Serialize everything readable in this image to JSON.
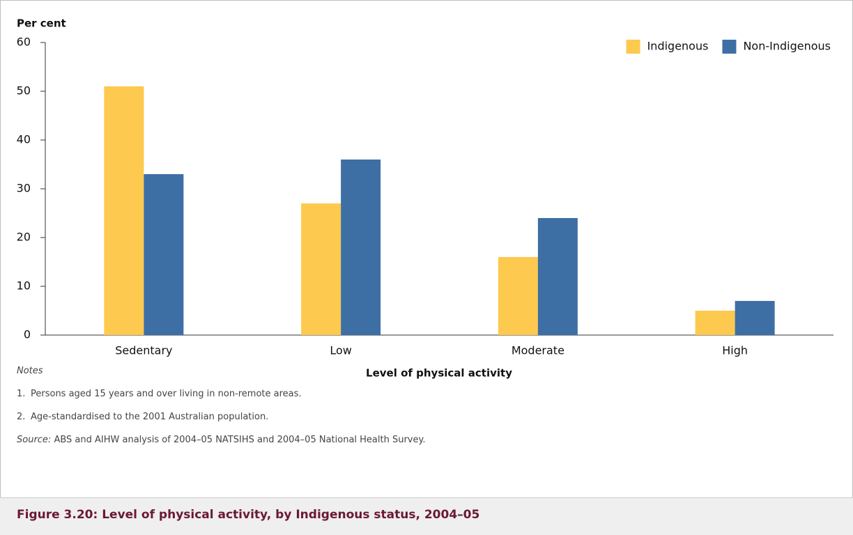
{
  "chart_data": {
    "type": "bar",
    "y_label": "Per cent",
    "x_label": "Level of physical activity",
    "categories": [
      "Sedentary",
      "Low",
      "Moderate",
      "High"
    ],
    "series": [
      {
        "name": "Indigenous",
        "color": "#fdc94e",
        "values": [
          51,
          27,
          16,
          5
        ]
      },
      {
        "name": "Non-Indigenous",
        "color": "#3e6fa4",
        "values": [
          33,
          36,
          24,
          7
        ]
      }
    ],
    "ylim": [
      0,
      60
    ],
    "yticks": [
      0,
      10,
      20,
      30,
      40,
      50,
      60
    ],
    "grid": false,
    "legend": "top-right"
  },
  "notes": {
    "heading": "Notes",
    "items": [
      {
        "number": "1.",
        "text": "Persons aged 15 years and over living in non-remote areas."
      },
      {
        "number": "2.",
        "text": "Age-standardised to the 2001 Australian population."
      }
    ],
    "source_label": "Source:",
    "source_text": "ABS and AIHW analysis of 2004–05 NATSIHS and 2004–05 National Health Survey."
  },
  "figure_title": "Figure 3.20: Level of physical activity, by Indigenous status, 2004–05"
}
